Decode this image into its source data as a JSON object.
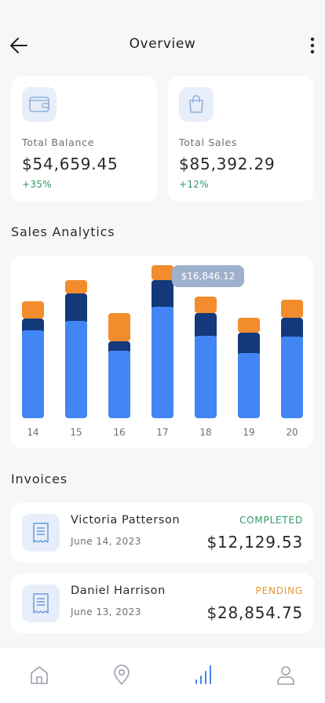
{
  "header": {
    "title": "Overview"
  },
  "stats": [
    {
      "label": "Total Balance",
      "value": "$54,659.45",
      "change": "+35%",
      "icon": "wallet-icon"
    },
    {
      "label": "Total Sales",
      "value": "$85,392.29",
      "change": "+12%",
      "icon": "shopping-bag-icon"
    }
  ],
  "analytics": {
    "title": "Sales Analytics"
  },
  "chart_data": {
    "type": "bar",
    "stacked": true,
    "categories": [
      "14",
      "15",
      "16",
      "17",
      "18",
      "19",
      "20"
    ],
    "series": [
      {
        "color": "#4285f4",
        "values": [
          108,
          120,
          82,
          138,
          101,
          79,
          100
        ]
      },
      {
        "color": "#14397a",
        "values": [
          15,
          35,
          12,
          34,
          29,
          26,
          24
        ]
      },
      {
        "color": "#f28c2c",
        "values": [
          22,
          17,
          36,
          19,
          21,
          19,
          23
        ]
      }
    ],
    "tooltip": {
      "category": "17",
      "text": "$16,846.12"
    }
  },
  "invoices": {
    "title": "Invoices",
    "items": [
      {
        "name": "Victoria Patterson",
        "date": "June 14, 2023",
        "status": "COMPLETED",
        "amount": "$12,129.53",
        "status_color": "#2e9a64",
        "icon": "receipt-icon"
      },
      {
        "name": "Daniel Harrison",
        "date": "June 13, 2023",
        "status": "PENDING",
        "amount": "$28,854.75",
        "status_color": "#e8952c",
        "icon": "receipt-icon"
      }
    ]
  },
  "nav": {
    "items": [
      {
        "name": "home-icon",
        "active": false
      },
      {
        "name": "location-pin-icon",
        "active": false
      },
      {
        "name": "bar-chart-icon",
        "active": true
      },
      {
        "name": "user-icon",
        "active": false
      }
    ],
    "active_color": "#4285f4",
    "inactive_color": "#9aa0aa"
  },
  "colors": {
    "accent": "#4285f4",
    "positive": "#2e9a64",
    "pending": "#e8952c"
  }
}
